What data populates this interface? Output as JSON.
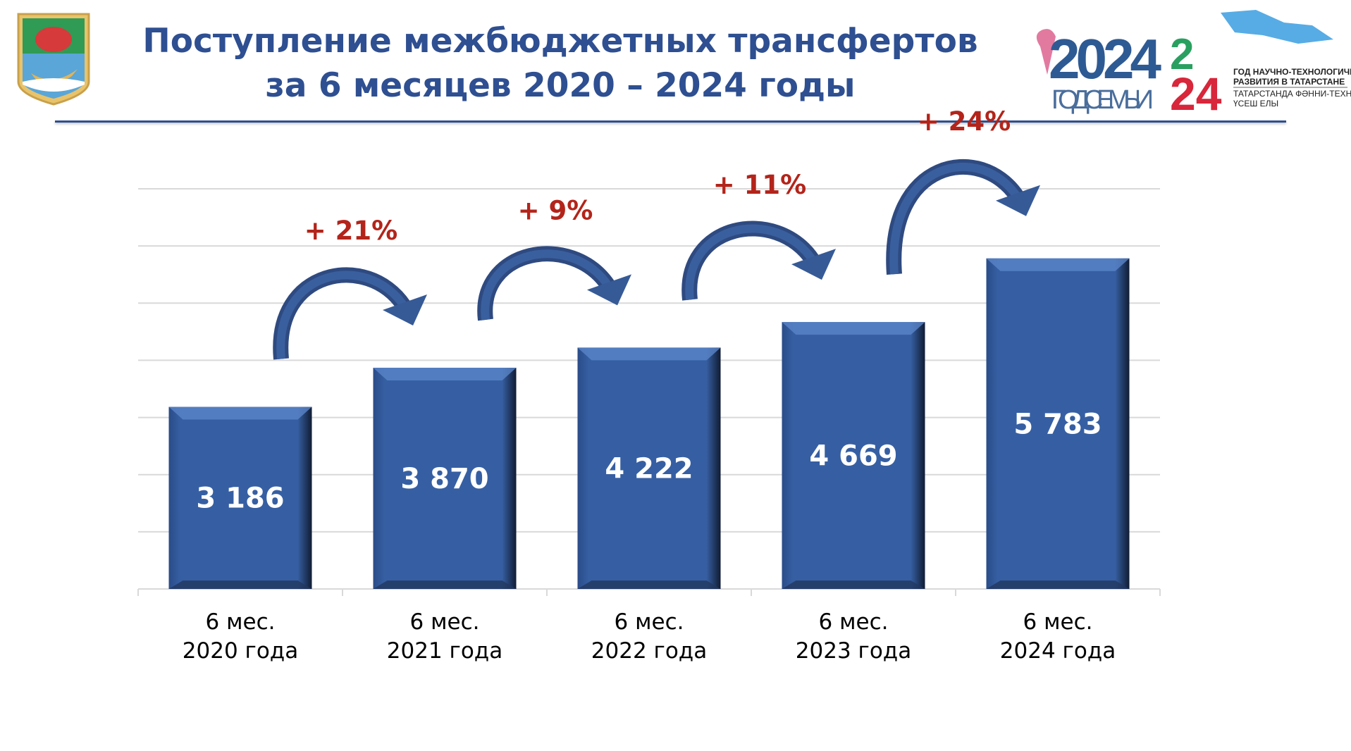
{
  "header": {
    "title_line1": "Поступление межбюджетных трансфертов",
    "title_line2": "за 6 месяцев 2020 – 2024 годы"
  },
  "logos": {
    "family_year": "2024",
    "family_caption": "ГОД СЕМЬИ",
    "tech_year_line1": "ГОД НАУЧНО-ТЕХНОЛОГИЧЕСКОГО",
    "tech_year_line2": "РАЗВИТИЯ В ТАТАРСТАНЕ",
    "tech_year_line3": "ТАТАРСТАНДА ФӘННИ-ТЕХНОЛОГИК",
    "tech_year_line4": "ҮСЕШ ЕЛЫ"
  },
  "colors": {
    "bar": "#365fa3",
    "accent": "#b3241a",
    "title": "#2e4f91"
  },
  "chart_data": {
    "type": "bar",
    "title": "Поступление межбюджетных трансфертов за 6 месяцев 2020 – 2024 годы",
    "categories": [
      [
        "6 мес.",
        "2020 года"
      ],
      [
        "6 мес.",
        "2021 года"
      ],
      [
        "6 мес.",
        "2022 года"
      ],
      [
        "6 мес.",
        "2023 года"
      ],
      [
        "6 мес.",
        "2024 года"
      ]
    ],
    "values": [
      3186,
      3870,
      4222,
      4669,
      5783
    ],
    "value_labels": [
      "3 186",
      "3 870",
      "4 222",
      "4 669",
      "5 783"
    ],
    "growth_labels": [
      "+ 21%",
      "+ 9%",
      "+ 11%",
      "+ 24%"
    ],
    "ylim": [
      0,
      7000
    ],
    "grid": true,
    "xlabel": "",
    "ylabel": ""
  }
}
